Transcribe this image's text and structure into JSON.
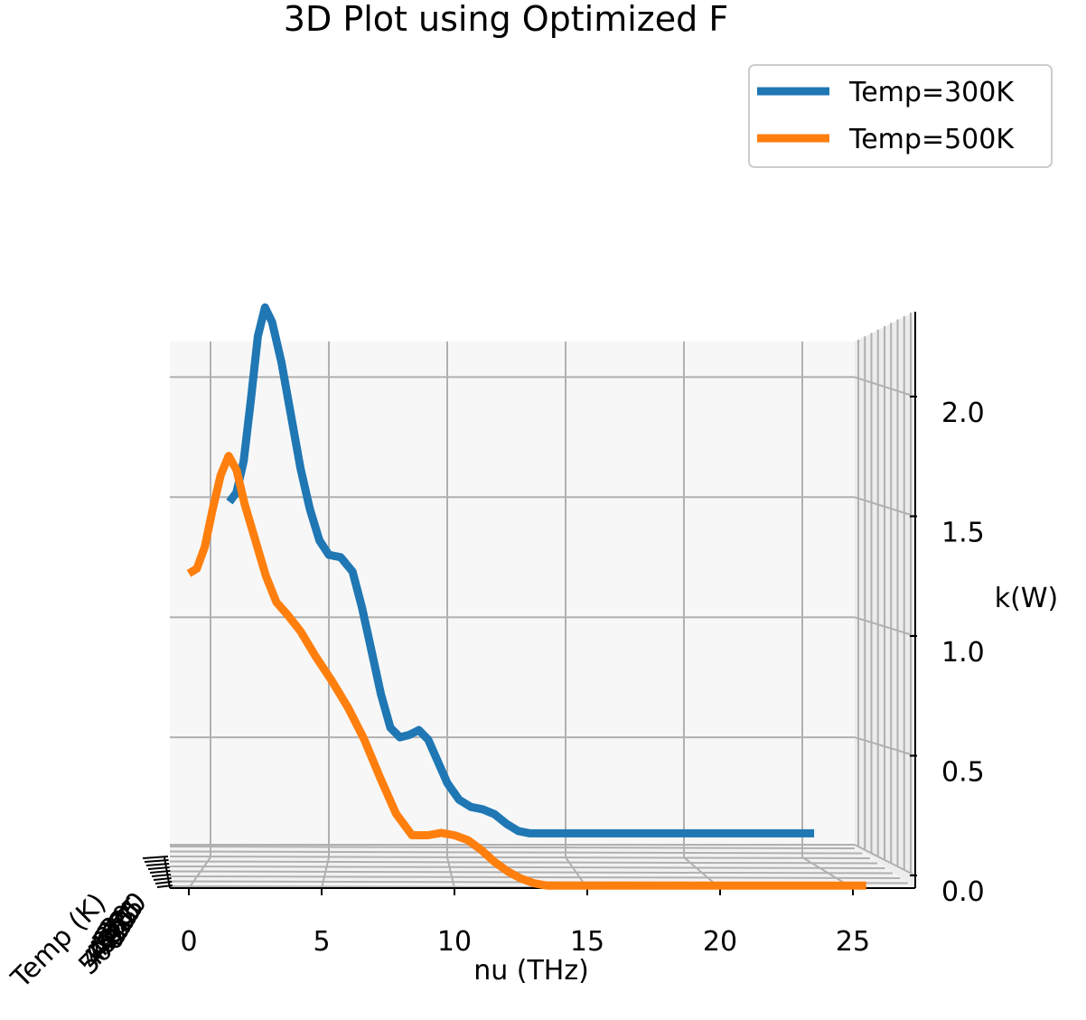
{
  "chart_data": {
    "type": "line",
    "title": "3D Plot using Optimized F",
    "xlabel": "nu (THz)",
    "ylabel": "Temp (K)",
    "zlabel": "k(W)",
    "xlim": [
      -1.5,
      27.5
    ],
    "zlim": [
      0,
      2.3
    ],
    "x_ticks": [
      0,
      5,
      10,
      15,
      20,
      25
    ],
    "z_ticks": [
      0.0,
      0.5,
      1.0,
      1.5,
      2.0
    ],
    "x_tick_labels": [
      "0",
      "5",
      "10",
      "15",
      "20",
      "25"
    ],
    "z_tick_labels": [
      "0.0",
      "0.5",
      "1.0",
      "1.5",
      "2.0"
    ],
    "temp_tick_labels": [
      "300",
      "325",
      "350",
      "375",
      "400",
      "425",
      "450",
      "475",
      "500"
    ],
    "grid": true,
    "legend": "top-right",
    "series": [
      {
        "name": "Temp=300K",
        "color": "#1f77b4",
        "temp": 300,
        "x": [
          0.8,
          1.1,
          1.4,
          1.7,
          2.0,
          2.3,
          2.6,
          3.0,
          3.4,
          3.8,
          4.2,
          4.6,
          5.0,
          5.5,
          6.0,
          6.4,
          6.8,
          7.2,
          7.6,
          8.0,
          8.4,
          8.8,
          9.2,
          9.6,
          10.0,
          10.5,
          11.0,
          11.5,
          12.0,
          12.5,
          13.0,
          13.5,
          14.0,
          14.5,
          15.0,
          15.5,
          16.0,
          17.0,
          18.0,
          20.0,
          22.0,
          24.0,
          25.5
        ],
        "y": [
          1.48,
          1.52,
          1.65,
          1.9,
          2.17,
          2.29,
          2.23,
          2.06,
          1.84,
          1.62,
          1.45,
          1.32,
          1.26,
          1.25,
          1.19,
          1.04,
          0.86,
          0.68,
          0.54,
          0.5,
          0.51,
          0.53,
          0.49,
          0.4,
          0.31,
          0.24,
          0.21,
          0.2,
          0.18,
          0.14,
          0.11,
          0.1,
          0.1,
          0.1,
          0.1,
          0.1,
          0.1,
          0.1,
          0.1,
          0.1,
          0.1,
          0.1,
          0.1
        ]
      },
      {
        "name": "Temp=500K",
        "color": "#ff7f0e",
        "temp": 500,
        "x": [
          0.0,
          0.3,
          0.6,
          0.9,
          1.2,
          1.5,
          1.8,
          2.1,
          2.5,
          2.9,
          3.3,
          3.7,
          4.2,
          4.8,
          5.4,
          6.0,
          6.6,
          7.2,
          7.8,
          8.4,
          9.0,
          9.5,
          10.0,
          10.5,
          11.0,
          11.5,
          12.0,
          12.5,
          13.0,
          13.5,
          14.0,
          14.5,
          15.0,
          16.0,
          18.0,
          20.0,
          22.0,
          24.0,
          25.5
        ],
        "y": [
          1.31,
          1.33,
          1.42,
          1.58,
          1.72,
          1.8,
          1.74,
          1.6,
          1.45,
          1.3,
          1.19,
          1.14,
          1.07,
          0.96,
          0.86,
          0.75,
          0.62,
          0.46,
          0.31,
          0.22,
          0.22,
          0.23,
          0.22,
          0.2,
          0.16,
          0.11,
          0.07,
          0.04,
          0.02,
          0.01,
          0.01,
          0.01,
          0.01,
          0.01,
          0.01,
          0.01,
          0.01,
          0.01,
          0.01
        ]
      }
    ]
  }
}
